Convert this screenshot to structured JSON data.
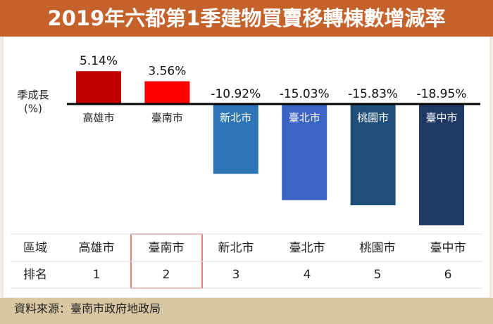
{
  "chart_data": {
    "type": "bar",
    "title": "2019年六都第1季建物買賣移轉棟數增減率",
    "ylabel": "季成長\n(%)",
    "categories": [
      "高雄市",
      "臺南市",
      "新北市",
      "臺北市",
      "桃園市",
      "臺中市"
    ],
    "values": [
      5.14,
      3.56,
      -10.92,
      -15.03,
      -15.83,
      -18.95
    ],
    "value_labels": [
      "5.14%",
      "3.56%",
      "-10.92%",
      "-15.03%",
      "-15.83%",
      "-18.95%"
    ],
    "colors": [
      "#c00000",
      "#ff0000",
      "#2e75b6",
      "#3a63c4",
      "#1f4e79",
      "#203864"
    ]
  },
  "table": {
    "header": [
      "區域",
      "高雄市",
      "臺南市",
      "新北市",
      "臺北市",
      "桃園市",
      "臺中市"
    ],
    "rows": [
      [
        "排名",
        1,
        2,
        3,
        4,
        5,
        6
      ]
    ]
  },
  "footer": "資料來源：臺南市政府地政局"
}
